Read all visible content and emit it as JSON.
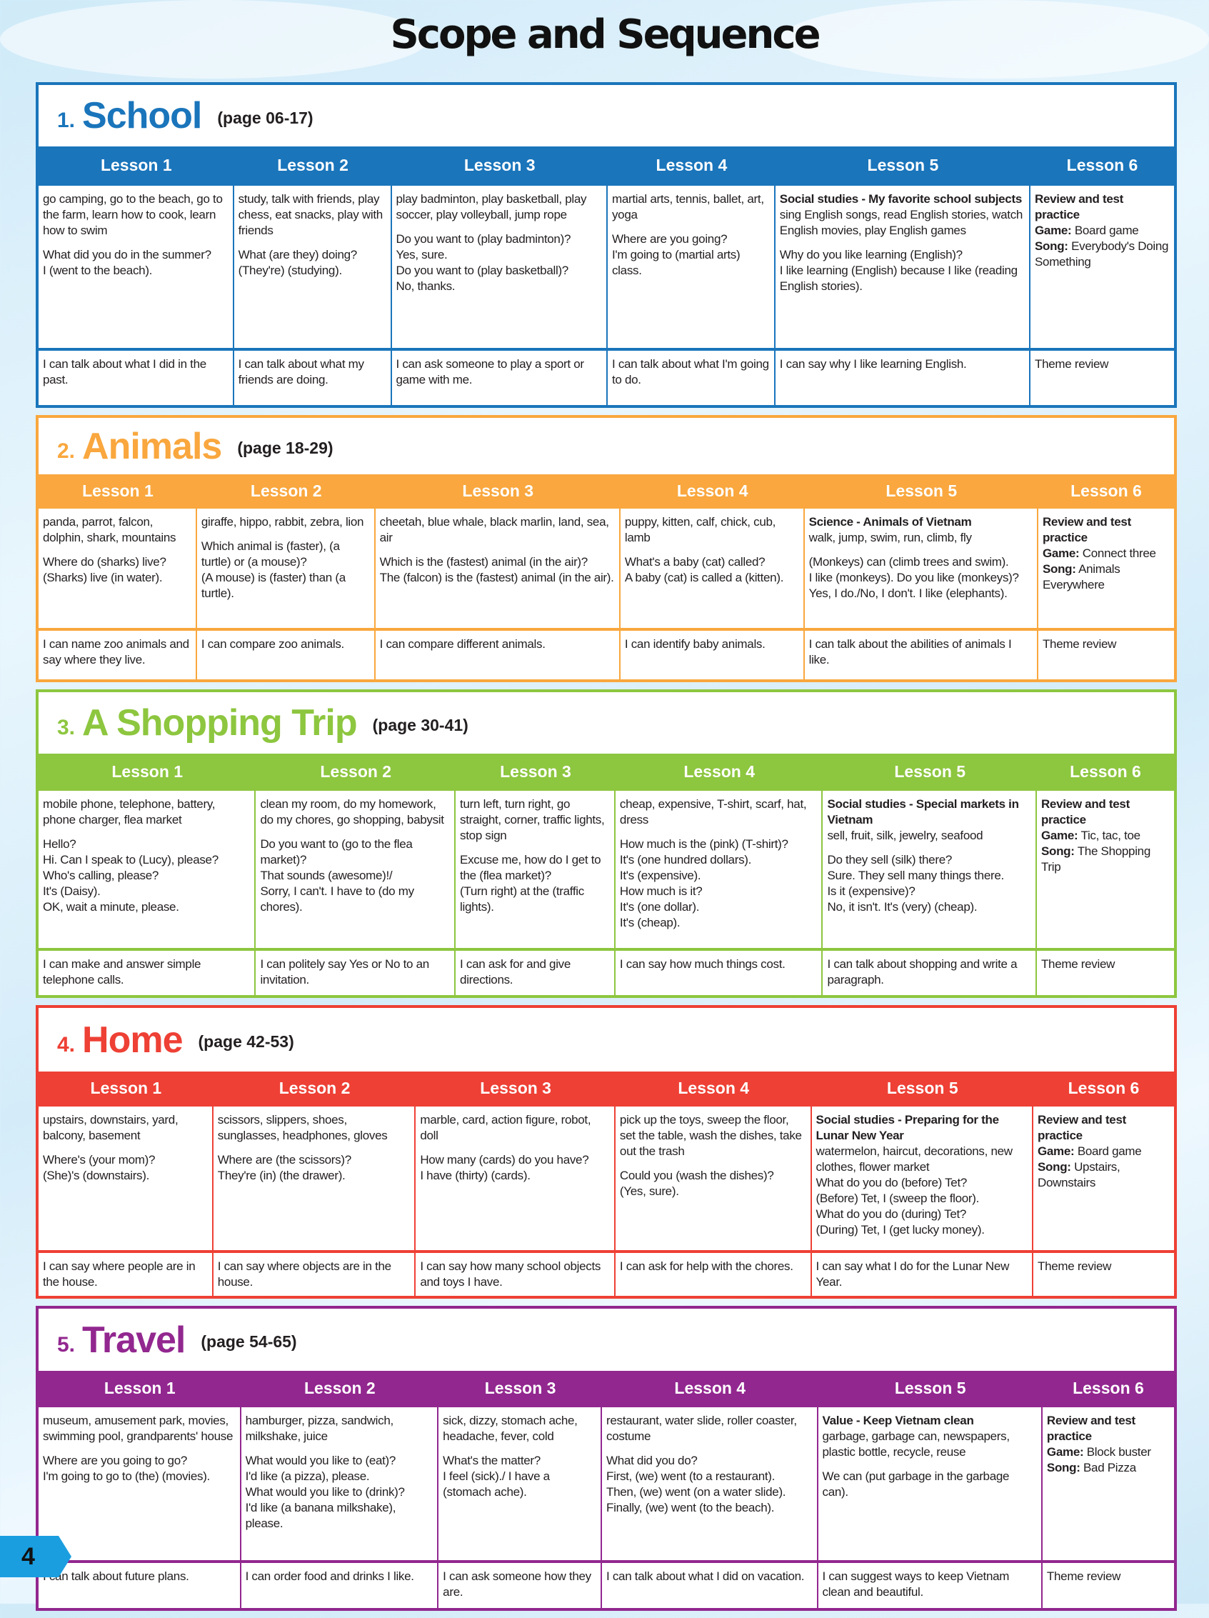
{
  "title": "Scope and Sequence",
  "page_number": "4",
  "units": [
    {
      "number": "1.",
      "name": "School",
      "pages": "(page 06-17)",
      "color": "#1a75bb",
      "lessons": [
        "Lesson 1",
        "Lesson 2",
        "Lesson 3",
        "Lesson 4",
        "Lesson 5",
        "Lesson 6"
      ],
      "content": [
        {
          "paras": [
            {
              "t": "go camping, go to the beach, go to the farm, learn how to cook, learn how to swim"
            },
            {
              "t": "What did you do in the summer?\nI (went to the beach)."
            }
          ]
        },
        {
          "paras": [
            {
              "t": "study, talk with friends, play chess, eat snacks, play with friends"
            },
            {
              "t": "What (are they) doing?\n(They're) (studying)."
            }
          ]
        },
        {
          "paras": [
            {
              "t": "play badminton, play basketball, play soccer, play volleyball, jump rope"
            },
            {
              "t": "Do you want to (play badminton)?\nYes, sure.\nDo you want to (play basketball)?\nNo, thanks."
            }
          ]
        },
        {
          "paras": [
            {
              "t": "martial arts, tennis, ballet, art, yoga"
            },
            {
              "t": "Where are you going?\nI'm going to (martial arts) class."
            }
          ]
        },
        {
          "title": "Social studies - My favorite school subjects",
          "paras": [
            {
              "t": "sing English songs, read English stories, watch English movies, play English games"
            },
            {
              "t": "Why do you like learning (English)?\nI like learning (English) because I like (reading English stories)."
            }
          ]
        },
        {
          "title": "Review and test practice",
          "tight": true,
          "paras": [
            {
              "b": "Game:",
              "t": " Board game"
            },
            {
              "b": "Song:",
              "t": " Everybody's Doing Something"
            }
          ]
        }
      ],
      "outcomes": [
        "I can talk about what I did in the past.",
        "I can talk about what my friends are doing.",
        "I can ask someone to play a sport or game with me.",
        "I can talk about what I'm going to do.",
        "I can say why I like learning English.",
        "Theme review"
      ]
    },
    {
      "number": "2.",
      "name": "Animals",
      "pages": "(page 18-29)",
      "color": "#f9a73e",
      "lessons": [
        "Lesson 1",
        "Lesson 2",
        "Lesson 3",
        "Lesson 4",
        "Lesson 5",
        "Lesson 6"
      ],
      "content": [
        {
          "paras": [
            {
              "t": "panda, parrot, falcon, dolphin, shark, mountains"
            },
            {
              "t": "Where do (sharks) live?\n(Sharks) live (in water)."
            }
          ]
        },
        {
          "paras": [
            {
              "t": "giraffe, hippo, rabbit, zebra, lion"
            },
            {
              "t": "Which animal is (faster), (a turtle) or (a mouse)?\n(A mouse) is (faster) than (a turtle)."
            }
          ]
        },
        {
          "paras": [
            {
              "t": "cheetah, blue whale, black marlin, land, sea, air"
            },
            {
              "t": "Which is the (fastest) animal (in the air)?\nThe (falcon) is the (fastest) animal (in the air)."
            }
          ]
        },
        {
          "paras": [
            {
              "t": "puppy, kitten, calf, chick, cub, lamb"
            },
            {
              "t": "What's a baby (cat) called?\nA baby (cat) is called a (kitten)."
            }
          ]
        },
        {
          "title": "Science - Animals of Vietnam",
          "paras": [
            {
              "t": "walk, jump, swim, run, climb, fly"
            },
            {
              "t": "(Monkeys) can (climb trees and swim).\nI like (monkeys). Do you like (monkeys)?\nYes, I do./No, I don't. I like (elephants)."
            }
          ]
        },
        {
          "title": "Review and test practice",
          "tight": true,
          "paras": [
            {
              "b": "Game:",
              "t": " Connect three"
            },
            {
              "b": "Song:",
              "t": " Animals Everywhere"
            }
          ]
        }
      ],
      "outcomes": [
        "I can name zoo animals and say where they live.",
        "I can compare zoo animals.",
        "I can compare different animals.",
        "I can identify baby animals.",
        "I can talk about the abilities of animals I like.",
        "Theme review"
      ]
    },
    {
      "number": "3.",
      "name": "A Shopping Trip",
      "pages": "(page 30-41)",
      "color": "#8dc63f",
      "lessons": [
        "Lesson 1",
        "Lesson 2",
        "Lesson 3",
        "Lesson 4",
        "Lesson 5",
        "Lesson 6"
      ],
      "content": [
        {
          "paras": [
            {
              "t": "mobile phone, telephone, battery, phone charger, flea market"
            },
            {
              "t": "Hello?\nHi. Can I speak to (Lucy), please?\nWho's calling, please?\nIt's (Daisy).\nOK, wait a minute, please."
            }
          ]
        },
        {
          "paras": [
            {
              "t": "clean my room, do my homework, do my chores, go shopping, babysit"
            },
            {
              "t": "Do you want to (go to the flea market)?\nThat sounds (awesome)!/\nSorry, I can't. I have to (do my chores)."
            }
          ]
        },
        {
          "paras": [
            {
              "t": "turn left, turn right, go straight, corner, traffic lights, stop sign"
            },
            {
              "t": "Excuse me, how do I get to the (flea market)?\n(Turn right) at the (traffic lights)."
            }
          ]
        },
        {
          "paras": [
            {
              "t": "cheap, expensive, T-shirt, scarf, hat, dress"
            },
            {
              "t": "How much is the (pink) (T-shirt)?\nIt's (one hundred dollars).\nIt's (expensive).\nHow much is it?\nIt's (one dollar).\nIt's (cheap)."
            }
          ]
        },
        {
          "title": "Social studies - Special markets in Vietnam",
          "paras": [
            {
              "t": "sell, fruit, silk, jewelry, seafood"
            },
            {
              "t": "Do they sell (silk) there?\nSure. They sell many things there.\nIs it (expensive)?\nNo, it isn't. It's (very) (cheap)."
            }
          ]
        },
        {
          "title": "Review and test practice",
          "tight": true,
          "paras": [
            {
              "b": "Game:",
              "t": " Tic, tac, toe"
            },
            {
              "b": "Song:",
              "t": " The Shopping Trip"
            }
          ]
        }
      ],
      "outcomes": [
        "I can make and answer simple telephone calls.",
        "I can politely say Yes or No to an invitation.",
        "I can ask for and give directions.",
        "I can say how much things cost.",
        "I can talk about shopping and write a paragraph.",
        "Theme review"
      ]
    },
    {
      "number": "4.",
      "name": "Home",
      "pages": "(page 42-53)",
      "color": "#ee4035",
      "lessons": [
        "Lesson 1",
        "Lesson 2",
        "Lesson 3",
        "Lesson 4",
        "Lesson 5",
        "Lesson 6"
      ],
      "content": [
        {
          "paras": [
            {
              "t": "upstairs, downstairs, yard, balcony, basement"
            },
            {
              "t": "Where's (your mom)?\n(She)'s (downstairs)."
            }
          ]
        },
        {
          "paras": [
            {
              "t": "scissors, slippers, shoes, sunglasses, headphones, gloves"
            },
            {
              "t": "Where are (the scissors)?\nThey're (in) (the drawer)."
            }
          ]
        },
        {
          "paras": [
            {
              "t": "marble, card, action figure, robot, doll"
            },
            {
              "t": "How many (cards) do you have?\nI have (thirty) (cards)."
            }
          ]
        },
        {
          "paras": [
            {
              "t": "pick up the toys, sweep the floor, set the table, wash the dishes, take out the trash"
            },
            {
              "t": "Could you (wash the dishes)?\n(Yes, sure)."
            }
          ]
        },
        {
          "title": "Social studies - Preparing for the Lunar New Year",
          "paras": [
            {
              "t": "watermelon, haircut, decorations, new clothes, flower market\nWhat do you do (before) Tet?\n(Before) Tet, I (sweep the floor).\nWhat do you do (during) Tet?\n(During) Tet, I (get lucky money)."
            }
          ]
        },
        {
          "title": "Review and test practice",
          "tight": true,
          "paras": [
            {
              "b": "Game:",
              "t": " Board game"
            },
            {
              "b": "Song:",
              "t": " Upstairs, Downstairs"
            }
          ]
        }
      ],
      "outcomes": [
        "I can say where people are in the house.",
        "I can say where objects are in the house.",
        "I can say how many school objects and toys I have.",
        "I can ask for help with the chores.",
        "I can say what I do for the Lunar New Year.",
        "Theme review"
      ]
    },
    {
      "number": "5.",
      "name": "Travel",
      "pages": "(page 54-65)",
      "color": "#92278f",
      "lessons": [
        "Lesson 1",
        "Lesson 2",
        "Lesson 3",
        "Lesson 4",
        "Lesson 5",
        "Lesson 6"
      ],
      "content": [
        {
          "paras": [
            {
              "t": "museum, amusement park, movies, swimming pool, grandparents' house"
            },
            {
              "t": "Where are you going to go?\nI'm going to go to (the) (movies)."
            }
          ]
        },
        {
          "paras": [
            {
              "t": "hamburger, pizza, sandwich, milkshake, juice"
            },
            {
              "t": "What would you like to (eat)?\nI'd like (a pizza), please.\nWhat would you like to (drink)?\nI'd like (a banana milkshake), please."
            }
          ]
        },
        {
          "paras": [
            {
              "t": "sick, dizzy, stomach ache, headache, fever, cold"
            },
            {
              "t": "What's the matter?\nI feel (sick)./ I have a (stomach ache)."
            }
          ]
        },
        {
          "paras": [
            {
              "t": "restaurant, water slide, roller coaster, costume"
            },
            {
              "t": "What did you do?\nFirst, (we) went (to a restaurant).\nThen, (we) went (on a water slide).\nFinally, (we) went (to the beach)."
            }
          ]
        },
        {
          "title": "Value - Keep Vietnam clean",
          "paras": [
            {
              "t": "garbage, garbage can, newspapers, plastic bottle, recycle, reuse"
            },
            {
              "t": "We can (put garbage in the garbage can)."
            }
          ]
        },
        {
          "title": "Review and test practice",
          "tight": true,
          "paras": [
            {
              "b": "Game:",
              "t": " Block buster"
            },
            {
              "b": "Song:",
              "t": " Bad Pizza"
            }
          ]
        }
      ],
      "outcomes": [
        "I can talk about future plans.",
        "I can order food and drinks I like.",
        "I can ask someone how they are.",
        "I can talk about what I did on vacation.",
        "I can suggest ways to keep Vietnam clean and beautiful.",
        "Theme review"
      ]
    }
  ]
}
